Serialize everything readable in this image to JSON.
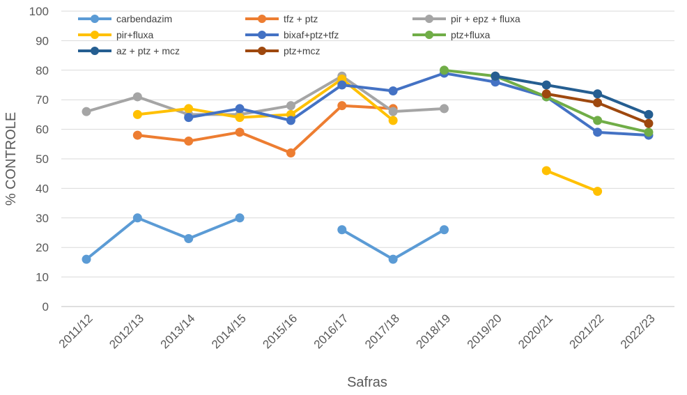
{
  "chart_data": {
    "type": "line",
    "title": "",
    "xlabel": "Safras",
    "ylabel": "% CONTROLE",
    "ylim": [
      0,
      100
    ],
    "yticks": [
      "0",
      "10",
      "20",
      "30",
      "40",
      "50",
      "60",
      "70",
      "80",
      "90",
      "100"
    ],
    "grid": true,
    "legend_position": "top",
    "categories": [
      "2011/12",
      "2012/13",
      "2013/14",
      "2014/15",
      "2015/16",
      "2016/17",
      "2017/18",
      "2018/19",
      "2019/20",
      "2020/21",
      "2021/22",
      "2022/23"
    ],
    "series": [
      {
        "name": "carbendazim",
        "color": "#5B9BD5",
        "values": [
          16,
          30,
          23,
          30,
          null,
          26,
          16,
          26,
          null,
          null,
          null,
          null
        ]
      },
      {
        "name": "tfz + ptz",
        "color": "#ED7D31",
        "values": [
          null,
          58,
          56,
          59,
          52,
          68,
          67,
          null,
          null,
          null,
          null,
          null
        ]
      },
      {
        "name": "pir + epz + fluxa",
        "color": "#A5A5A5",
        "values": [
          66,
          71,
          65,
          65,
          68,
          78,
          66,
          67,
          null,
          null,
          null,
          null
        ]
      },
      {
        "name": "pir+fluxa",
        "color": "#FFC000",
        "values": [
          null,
          65,
          67,
          64,
          65,
          77,
          63,
          null,
          null,
          46,
          39,
          null
        ]
      },
      {
        "name": "bixaf+ptz+tfz",
        "color": "#4472C4",
        "values": [
          null,
          null,
          64,
          67,
          63,
          75,
          73,
          79,
          76,
          71,
          59,
          58
        ]
      },
      {
        "name": "ptz+fluxa",
        "color": "#70AD47",
        "values": [
          null,
          null,
          null,
          null,
          null,
          null,
          null,
          80,
          78,
          71,
          63,
          59
        ]
      },
      {
        "name": "az + ptz + mcz",
        "color": "#255E91",
        "values": [
          null,
          null,
          null,
          null,
          null,
          null,
          null,
          null,
          78,
          75,
          72,
          65
        ]
      },
      {
        "name": "ptz+mcz",
        "color": "#9E480E",
        "values": [
          null,
          null,
          null,
          null,
          null,
          null,
          null,
          null,
          null,
          72,
          69,
          62
        ]
      }
    ]
  }
}
